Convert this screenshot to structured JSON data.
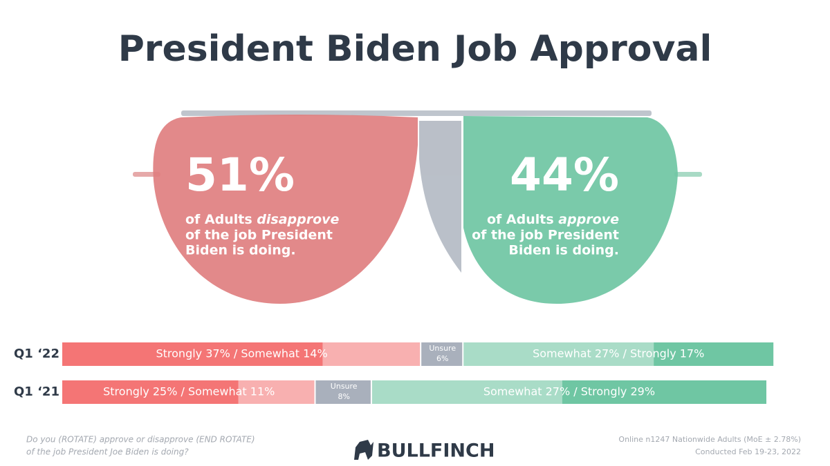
{
  "chart_data": {
    "type": "stacked-bar",
    "title": "President Biden Job Approval",
    "headline": [
      {
        "value": 51,
        "value_label": "51%",
        "lead": "of Adults",
        "emphasis": "disapprove",
        "lines": [
          "of the job President",
          "Biden is doing."
        ],
        "color": "#df7f80"
      },
      {
        "value": 44,
        "value_label": "44%",
        "lead": "of Adults",
        "emphasis": "approve",
        "lines": [
          "of the job President",
          "Biden is doing."
        ],
        "color": "#6fc6a3"
      }
    ],
    "categories": [
      "Q1 ‘22",
      "Q1 ‘21"
    ],
    "xlim": [
      0,
      100
    ],
    "series": [
      {
        "color": "#f47575",
        "values": [
          37,
          25
        ]
      },
      {
        "color": "#f8b0b0",
        "values": [
          14,
          11
        ]
      },
      {
        "name": "Unsure",
        "color": "#a9b0bc",
        "values": [
          6,
          8
        ],
        "value_labels": [
          "6%",
          "8%"
        ]
      },
      {
        "color": "#a9dcc7",
        "values": [
          27,
          27
        ]
      },
      {
        "color": "#6fc6a3",
        "values": [
          17,
          29
        ]
      }
    ],
    "disapprove_labels": [
      "Strongly 37% / Somewhat 14%",
      "Strongly 25% / Somewhat 11%"
    ],
    "approve_labels": [
      "Somewhat 27% / Strongly 17%",
      "Somewhat 27% / Strongly 29%"
    ],
    "footer": {
      "question": [
        "Do you (ROTATE) approve or disapprove (END ROTATE)",
        "of the job President Joe Biden is doing?"
      ],
      "brand": "BULLFINCH",
      "source": [
        "Online n1247 Nationwide Adults (MoE ± 2.78%)",
        "Conducted Feb 19-23, 2022"
      ]
    }
  }
}
